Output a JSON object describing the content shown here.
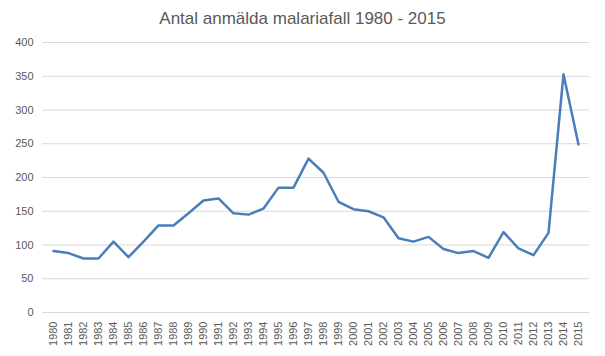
{
  "chart_data": {
    "type": "line",
    "title": "Antal anmälda malariafall 1980 - 2015",
    "categories": [
      "1980",
      "1981",
      "1982",
      "1983",
      "1984",
      "1985",
      "1986",
      "1987",
      "1988",
      "1989",
      "1990",
      "1991",
      "1992",
      "1993",
      "1994",
      "1995",
      "1996",
      "1997",
      "1998",
      "1999",
      "2000",
      "2001",
      "2002",
      "2003",
      "2004",
      "2005",
      "2006",
      "2007",
      "2008",
      "2009",
      "2010",
      "2011",
      "2012",
      "2013",
      "2014",
      "2015"
    ],
    "values": [
      91,
      88,
      80,
      80,
      105,
      82,
      105,
      129,
      129,
      147,
      166,
      169,
      147,
      145,
      154,
      185,
      185,
      228,
      207,
      164,
      153,
      150,
      141,
      110,
      105,
      112,
      94,
      88,
      91,
      81,
      119,
      95,
      85,
      118,
      353,
      249
    ],
    "color": "#4a7ebb",
    "ylim": [
      0,
      400
    ],
    "yticks": [
      0,
      50,
      100,
      150,
      200,
      250,
      300,
      350,
      400
    ],
    "grid": true
  }
}
